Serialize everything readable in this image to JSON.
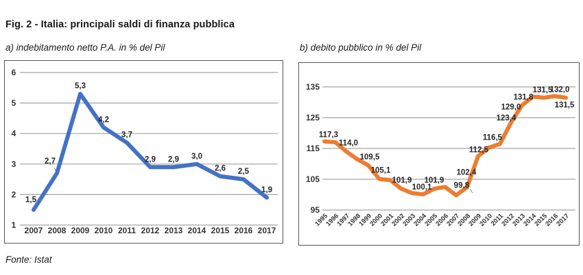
{
  "figure": {
    "title": "Fig. 2 - Italia: principali saldi di finanza pubblica",
    "source": "Fonte: Istat"
  },
  "colors": {
    "deficit_line": "#4472C4",
    "debt_line": "#ED7D31",
    "gridline": "#A3A3A3",
    "frame": "#555555"
  },
  "chart_data": [
    {
      "id": "deficit",
      "type": "line",
      "title": "a) indebitamento netto P.A. in % del Pil",
      "categories": [
        "2007",
        "2008",
        "2009",
        "2010",
        "2011",
        "2012",
        "2013",
        "2014",
        "2015",
        "2016",
        "2017"
      ],
      "values": [
        1.5,
        2.7,
        5.3,
        4.2,
        3.7,
        2.9,
        2.9,
        3.0,
        2.6,
        2.5,
        1.9
      ],
      "point_labels": [
        {
          "year": "2007",
          "text": "1,5"
        },
        {
          "year": "2008",
          "text": "2,7"
        },
        {
          "year": "2009",
          "text": "5,3"
        },
        {
          "year": "2010",
          "text": "4,2"
        },
        {
          "year": "2011",
          "text": "3,7"
        },
        {
          "year": "2012",
          "text": "2,9"
        },
        {
          "year": "2013",
          "text": "2,9"
        },
        {
          "year": "2014",
          "text": "3,0"
        },
        {
          "year": "2015",
          "text": "2,6"
        },
        {
          "year": "2016",
          "text": "2,5"
        },
        {
          "year": "2017",
          "text": "1,9"
        }
      ],
      "yticks": [
        1,
        2,
        3,
        4,
        5,
        6
      ],
      "ylim": [
        0.5,
        6.4
      ],
      "grid": true,
      "legend": "none",
      "line_color": "#4472C4",
      "xlabel": "",
      "ylabel": ""
    },
    {
      "id": "debt",
      "type": "line",
      "title": "b) debito pubblico in % del Pil",
      "categories": [
        "1995",
        "1996",
        "1997",
        "1998",
        "1999",
        "2000",
        "2001",
        "2002",
        "2003",
        "2004",
        "2005",
        "2006",
        "2007",
        "2008",
        "2009",
        "2010",
        "2011",
        "2012",
        "2013",
        "2014",
        "2015",
        "2016",
        "2017"
      ],
      "values": [
        117.3,
        117.0,
        114.0,
        111.5,
        109.5,
        105.1,
        104.7,
        101.9,
        100.5,
        100.1,
        101.9,
        102.5,
        99.8,
        102.4,
        112.5,
        115.3,
        116.5,
        123.4,
        129.0,
        131.8,
        131.5,
        132.0,
        131.5
      ],
      "point_labels": [
        {
          "year": "1995",
          "text": "117,3"
        },
        {
          "year": "1997",
          "text": "114,0"
        },
        {
          "year": "1999",
          "text": "109,5"
        },
        {
          "year": "2000",
          "text": "105,1"
        },
        {
          "year": "2002",
          "text": "101,9"
        },
        {
          "year": "2004",
          "text": "100,1"
        },
        {
          "year": "2005",
          "text": "101,9"
        },
        {
          "year": "2007",
          "text": "99,8"
        },
        {
          "year": "2008",
          "text": "102,4"
        },
        {
          "year": "2009",
          "text": "112,5"
        },
        {
          "year": "2011",
          "text": "116,5"
        },
        {
          "year": "2012",
          "text": "123,4"
        },
        {
          "year": "2013",
          "text": "129,0"
        },
        {
          "year": "2014",
          "text": "131,8"
        },
        {
          "year": "2015",
          "text": "131,5"
        },
        {
          "year": "2016",
          "text": "132,0"
        },
        {
          "year": "2017",
          "text": "131,5"
        }
      ],
      "yticks": [
        95,
        105,
        115,
        125,
        135
      ],
      "ylim": [
        91,
        140
      ],
      "grid": true,
      "legend": "none",
      "line_color": "#ED7D31",
      "xlabel": "",
      "ylabel": ""
    }
  ]
}
